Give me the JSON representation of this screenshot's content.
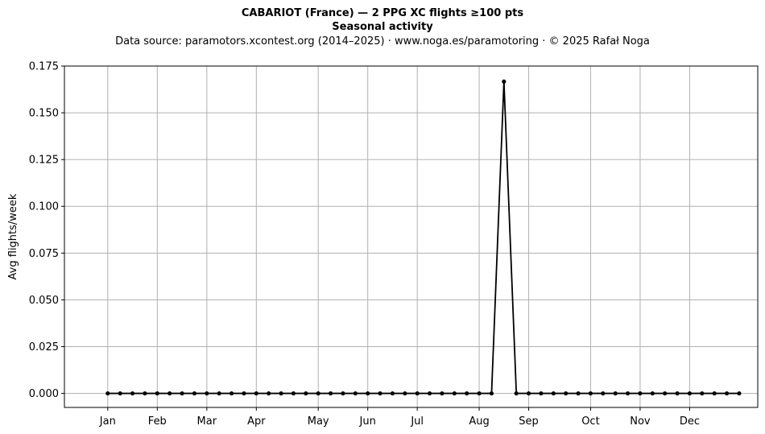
{
  "chart_data": {
    "type": "line",
    "title": "CABARIOT (France)  —  2 PPG XC flights ≥100 pts",
    "subtitle": "Seasonal activity",
    "caption": "Data source: paramotors.xcontest.org (2014–2025)  ·  www.noga.es/paramotoring  ·  © 2025 Rafał Noga",
    "xlabel": "",
    "ylabel": "Avg flights/week",
    "ylim": [
      -0.0075,
      0.175
    ],
    "yticks": [
      "0.000",
      "0.025",
      "0.050",
      "0.075",
      "0.100",
      "0.125",
      "0.150",
      "0.175"
    ],
    "ytick_values": [
      0,
      0.025,
      0.05,
      0.075,
      0.1,
      0.125,
      0.15,
      0.175
    ],
    "xlim": [
      -2.5,
      53.5
    ],
    "xticks": [
      "Jan",
      "Feb",
      "Mar",
      "Apr",
      "May",
      "Jun",
      "Jul",
      "Aug",
      "Sep",
      "Oct",
      "Nov",
      "Dec"
    ],
    "xtick_weeks": [
      1,
      5,
      9,
      13,
      18,
      22,
      26,
      31,
      35,
      40,
      44,
      48
    ],
    "grid": true,
    "color": "#000000",
    "grid_color": "#b0b0b0",
    "x": [
      1,
      2,
      3,
      4,
      5,
      6,
      7,
      8,
      9,
      10,
      11,
      12,
      13,
      14,
      15,
      16,
      17,
      18,
      19,
      20,
      21,
      22,
      23,
      24,
      25,
      26,
      27,
      28,
      29,
      30,
      31,
      32,
      33,
      34,
      35,
      36,
      37,
      38,
      39,
      40,
      41,
      42,
      43,
      44,
      45,
      46,
      47,
      48,
      49,
      50,
      51,
      52
    ],
    "values": [
      0,
      0,
      0,
      0,
      0,
      0,
      0,
      0,
      0,
      0,
      0,
      0,
      0,
      0,
      0,
      0,
      0,
      0,
      0,
      0,
      0,
      0,
      0,
      0,
      0,
      0,
      0,
      0,
      0,
      0,
      0,
      0,
      0.1667,
      0,
      0,
      0,
      0,
      0,
      0,
      0,
      0,
      0,
      0,
      0,
      0,
      0,
      0,
      0,
      0,
      0,
      0,
      0
    ]
  }
}
